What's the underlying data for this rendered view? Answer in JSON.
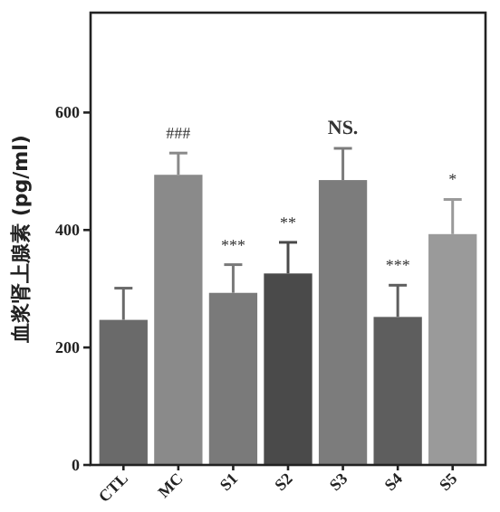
{
  "chart_data": {
    "type": "bar",
    "ylabel": "血浆肾上腺素 (pg/ml)",
    "categories": [
      "CTL",
      "MC",
      "S1",
      "S2",
      "S3",
      "S4",
      "S5"
    ],
    "values": [
      247,
      494,
      293,
      326,
      485,
      252,
      393
    ],
    "colors": [
      "#6a6a6a",
      "#8a8a8a",
      "#7a7a7a",
      "#4a4a4a",
      "#7c7c7c",
      "#5e5e5e",
      "#9a9a9a"
    ],
    "errors": [
      [
        247,
        301
      ],
      [
        494,
        531
      ],
      [
        293,
        341
      ],
      [
        326,
        379
      ],
      [
        485,
        539
      ],
      [
        252,
        306
      ],
      [
        393,
        452
      ]
    ],
    "ylim": [
      0,
      770
    ],
    "yticks": [
      0,
      200,
      400,
      600
    ],
    "grid": false,
    "annotations": [
      "###",
      "***",
      "**",
      "NS.",
      "***",
      "*"
    ]
  }
}
